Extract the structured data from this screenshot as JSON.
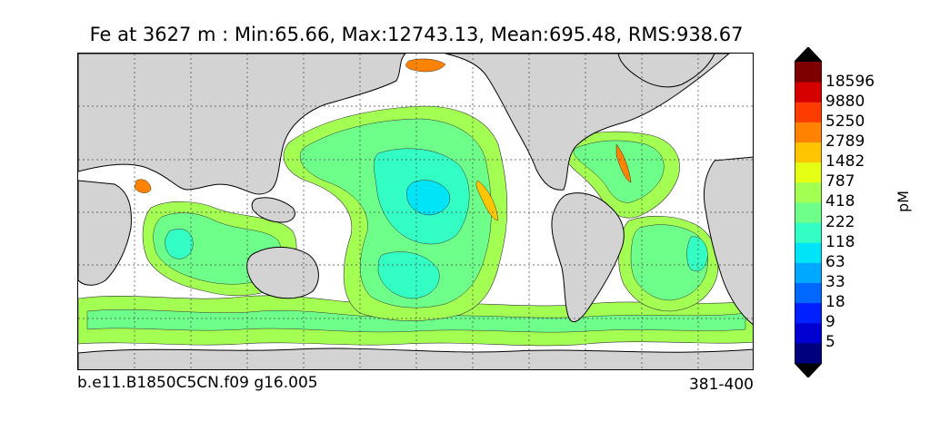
{
  "title": "Fe at 3627 m : Min:65.66, Max:12743.13, Mean:695.48, RMS:938.67",
  "footer": {
    "case_name": "b.e11.B1850C5CN.f09 g16.005",
    "years": "381-400"
  },
  "colorbar": {
    "unit": "pM",
    "levels": [
      "5",
      "9",
      "18",
      "33",
      "63",
      "118",
      "222",
      "418",
      "787",
      "1482",
      "2789",
      "5250",
      "9880",
      "18596"
    ],
    "colors": [
      "#00007f",
      "#0000d2",
      "#0020ff",
      "#0068ff",
      "#00a8ff",
      "#00e4f7",
      "#33ffc4",
      "#6dff8a",
      "#a4ff53",
      "#e4ff13",
      "#ffc400",
      "#ff8200",
      "#ff3c00",
      "#d70000",
      "#7f0000"
    ],
    "extend": "both"
  },
  "map": {
    "land_color": "#d3d3d3",
    "gridlines": "dashed"
  }
}
